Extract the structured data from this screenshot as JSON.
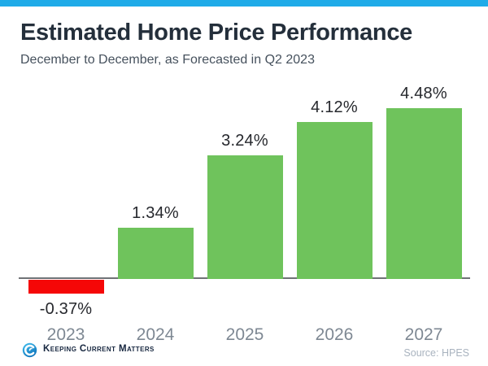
{
  "page": {
    "title": "Estimated Home Price Performance",
    "subtitle": "December to December, as Forecasted in Q2 2023",
    "accent_bar_color": "#1FABE8",
    "background_color": "#FFFFFF",
    "title_color": "#242F3B",
    "subtitle_color": "#46515D"
  },
  "chart_data": {
    "type": "bar",
    "title": "Estimated Home Price Performance",
    "subtitle": "December to December, as Forecasted in Q2 2023",
    "categories": [
      "2023",
      "2024",
      "2025",
      "2026",
      "2027"
    ],
    "values": [
      -0.37,
      1.34,
      3.24,
      4.12,
      4.48
    ],
    "value_labels": [
      "-0.37%",
      "1.34%",
      "3.24%",
      "4.12%",
      "4.48%"
    ],
    "xlabel": "",
    "ylabel": "",
    "ylim": [
      -0.9,
      5.0
    ],
    "grid": false,
    "legend": null,
    "axis": "x-baseline-only",
    "positive_color": "#6FC35C",
    "negative_color": "#F50707",
    "axis_line_color": "#6F7276",
    "value_label_color": "#26282D",
    "category_label_color": "#7E8893"
  },
  "footer": {
    "brand": "Keeping Current Matters",
    "brand_color": "#16263F",
    "logo_icon": "kcm-swirl-icon",
    "logo_color_top": "#45C2F0",
    "logo_color_bottom": "#0E74BC",
    "source": "Source: HPES",
    "source_color": "#A9B3BF"
  }
}
